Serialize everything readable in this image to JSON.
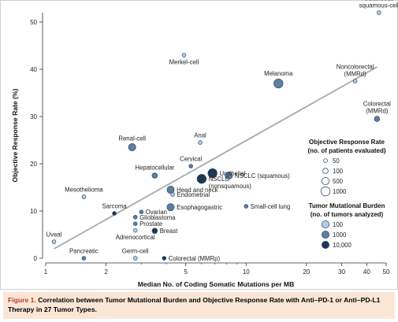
{
  "chart_data": {
    "type": "scatter",
    "xlabel": "Median No. of Coding Somatic Mutations per MB",
    "ylabel": "Objective Response Rate (%)",
    "x_scale": "log",
    "xlim": [
      1,
      50
    ],
    "ylim": [
      0,
      52
    ],
    "x_ticks": [
      1,
      2,
      5,
      10,
      20,
      30,
      40,
      50
    ],
    "y_ticks": [
      0,
      10,
      20,
      30,
      40,
      50
    ],
    "grid": false,
    "trend_line": {
      "x": [
        1.1,
        45
      ],
      "y": [
        2,
        40.5
      ]
    },
    "points": [
      {
        "label": "Cutaneous squamous-cell",
        "x": 46,
        "y": 52,
        "n": 30,
        "tmb": 100,
        "label_pos": "above"
      },
      {
        "label": "Merkel-cell",
        "x": 4.9,
        "y": 43,
        "n": 50,
        "tmb": 100,
        "label_pos": "below"
      },
      {
        "label": "Noncolorectal (MMRd)",
        "x": 35,
        "y": 37.5,
        "n": 50,
        "tmb": 100,
        "label_pos": "above"
      },
      {
        "label": "Melanoma",
        "x": 14.5,
        "y": 37,
        "n": 1000,
        "tmb": 1000,
        "label_pos": "above"
      },
      {
        "label": "Colorectal (MMRd)",
        "x": 45,
        "y": 29.5,
        "n": 100,
        "tmb": 1000,
        "label_pos": "above"
      },
      {
        "label": "Renal-cell",
        "x": 2.7,
        "y": 23.5,
        "n": 500,
        "tmb": 1000,
        "label_pos": "above"
      },
      {
        "label": "Anal",
        "x": 5.9,
        "y": 24.5,
        "n": 50,
        "tmb": 100,
        "label_pos": "above"
      },
      {
        "label": "Cervical",
        "x": 5.3,
        "y": 19.5,
        "n": 50,
        "tmb": 1000,
        "label_pos": "above"
      },
      {
        "label": "Hepatocellular",
        "x": 3.5,
        "y": 17.5,
        "n": 100,
        "tmb": 1000,
        "label_pos": "above"
      },
      {
        "label": "Urothelial",
        "x": 6.8,
        "y": 18,
        "n": 1000,
        "tmb": 10000,
        "label_pos": "right"
      },
      {
        "label": "NSCLC (squamous)",
        "x": 8.2,
        "y": 17.5,
        "n": 500,
        "tmb": 1000,
        "label_pos": "right"
      },
      {
        "label": "NSCLC (nonsquamous)",
        "x": 6.0,
        "y": 16.8,
        "n": 1000,
        "tmb": 10000,
        "label_pos": "right"
      },
      {
        "label": "Head and neck",
        "x": 4.2,
        "y": 14.5,
        "n": 500,
        "tmb": 1000,
        "label_pos": "right"
      },
      {
        "label": "Endometrial",
        "x": 4.3,
        "y": 13.5,
        "n": 50,
        "tmb": 100,
        "label_pos": "right"
      },
      {
        "label": "Mesothelioma",
        "x": 1.55,
        "y": 13,
        "n": 50,
        "tmb": 100,
        "label_pos": "above"
      },
      {
        "label": "Small-cell lung",
        "x": 10,
        "y": 11,
        "n": 50,
        "tmb": 1000,
        "label_pos": "right"
      },
      {
        "label": "Esophagogastric",
        "x": 4.2,
        "y": 10.8,
        "n": 500,
        "tmb": 1000,
        "label_pos": "right"
      },
      {
        "label": "Sarcoma",
        "x": 2.2,
        "y": 9.5,
        "n": 50,
        "tmb": 10000,
        "label_pos": "above"
      },
      {
        "label": "Ovarian",
        "x": 3.0,
        "y": 9.8,
        "n": 50,
        "tmb": 1000,
        "label_pos": "right"
      },
      {
        "label": "Glioblastoma",
        "x": 2.8,
        "y": 8.7,
        "n": 50,
        "tmb": 1000,
        "label_pos": "right"
      },
      {
        "label": "Prostate",
        "x": 2.8,
        "y": 7.3,
        "n": 50,
        "tmb": 1000,
        "label_pos": "right"
      },
      {
        "label": "Adrenocortical",
        "x": 2.8,
        "y": 5.9,
        "n": 50,
        "tmb": 100,
        "label_pos": "below"
      },
      {
        "label": "Breast",
        "x": 3.5,
        "y": 5.8,
        "n": 100,
        "tmb": 10000,
        "label_pos": "right"
      },
      {
        "label": "Uveal",
        "x": 1.1,
        "y": 3.5,
        "n": 50,
        "tmb": 100,
        "label_pos": "above"
      },
      {
        "label": "Pancreatic",
        "x": 1.55,
        "y": 0,
        "n": 50,
        "tmb": 1000,
        "label_pos": "above"
      },
      {
        "label": "Germ-cell",
        "x": 2.8,
        "y": 0,
        "n": 50,
        "tmb": 100,
        "label_pos": "above"
      },
      {
        "label": "Colorectal (MMRp)",
        "x": 3.9,
        "y": 0,
        "n": 50,
        "tmb": 10000,
        "label_pos": "right"
      }
    ],
    "legend": {
      "size_title_lines": [
        "Objective Response Rate",
        "(no. of patients evaluated)"
      ],
      "size_entries": [
        {
          "label": "50",
          "n": 50
        },
        {
          "label": "100",
          "n": 100
        },
        {
          "label": "500",
          "n": 500
        },
        {
          "label": "1000",
          "n": 1000
        }
      ],
      "color_title_lines": [
        "Tumor Mutational Burden",
        "(no. of tumors analyzed)"
      ],
      "color_entries": [
        {
          "label": "100",
          "tmb": 100
        },
        {
          "label": "1000",
          "tmb": 1000
        },
        {
          "label": "10,000",
          "tmb": 10000
        }
      ],
      "placement": "right"
    },
    "colors": {
      "100": "#b7cfe3",
      "1000": "#5f7fa1",
      "10000": "#1d3754",
      "trend": "#a8a8a8",
      "stroke": "#2c4a6a"
    }
  },
  "caption": {
    "figure_label": "Figure 1.",
    "text": "Correlation between Tumor Mutational Burden and Objective Response Rate with Anti–PD-1 or Anti–PD-L1 Therapy in 27 Tumor Types."
  }
}
